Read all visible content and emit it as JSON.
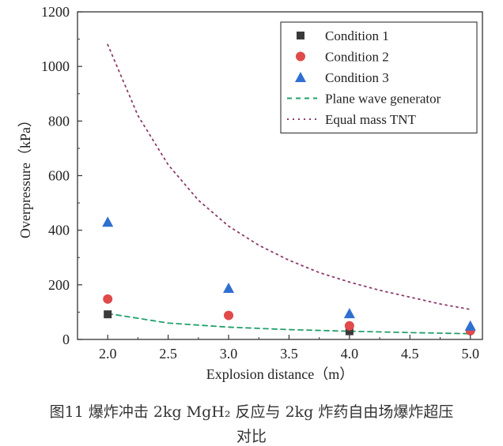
{
  "chart_data": {
    "type": "scatter",
    "xlabel": "Explosion distance（m）",
    "ylabel": "Overpressure（kPa）",
    "xlim": [
      1.75,
      5.1
    ],
    "ylim": [
      0,
      1200
    ],
    "xticks": [
      "2.0",
      "2.5",
      "3.0",
      "3.5",
      "4.0",
      "4.5",
      "5.0"
    ],
    "yticks": [
      "0",
      "200",
      "400",
      "600",
      "800",
      "1000",
      "1200"
    ],
    "grid": false,
    "legend_position": "top-right",
    "series": [
      {
        "name": "Condition 1",
        "kind": "points",
        "marker": "square",
        "color": "#3a3a3a",
        "x": [
          2.0,
          3.0,
          4.0,
          5.0
        ],
        "y": [
          92,
          0,
          30,
          0
        ],
        "visible": [
          true,
          false,
          true,
          false
        ]
      },
      {
        "name": "Condition 2",
        "kind": "points",
        "marker": "circle",
        "color": "#e04a4a",
        "x": [
          2.0,
          3.0,
          4.0,
          5.0
        ],
        "y": [
          148,
          88,
          50,
          32
        ]
      },
      {
        "name": "Condition 3",
        "kind": "points",
        "marker": "triangle",
        "color": "#2f6fd0",
        "x": [
          2.0,
          3.0,
          4.0,
          5.0
        ],
        "y": [
          430,
          188,
          95,
          50
        ]
      },
      {
        "name": "Plane wave generator",
        "kind": "line",
        "dash": "dash",
        "color": "#22a06b",
        "x": [
          2.0,
          2.5,
          3.0,
          3.5,
          4.0,
          4.5,
          5.0
        ],
        "y": [
          95,
          60,
          45,
          36,
          30,
          25,
          21
        ]
      },
      {
        "name": "Equal mass TNT",
        "kind": "line",
        "dash": "dot",
        "color": "#8b3a6b",
        "x": [
          2.0,
          2.25,
          2.5,
          2.75,
          3.0,
          3.25,
          3.5,
          3.75,
          4.0,
          4.25,
          4.5,
          4.75,
          5.0
        ],
        "y": [
          1080,
          820,
          640,
          510,
          415,
          345,
          290,
          245,
          210,
          180,
          155,
          130,
          110
        ]
      }
    ]
  },
  "caption": {
    "line1": "图11  爆炸冲击 2kg MgH₂ 反应与 2kg  炸药自由场爆炸超压",
    "line2": "对比"
  }
}
